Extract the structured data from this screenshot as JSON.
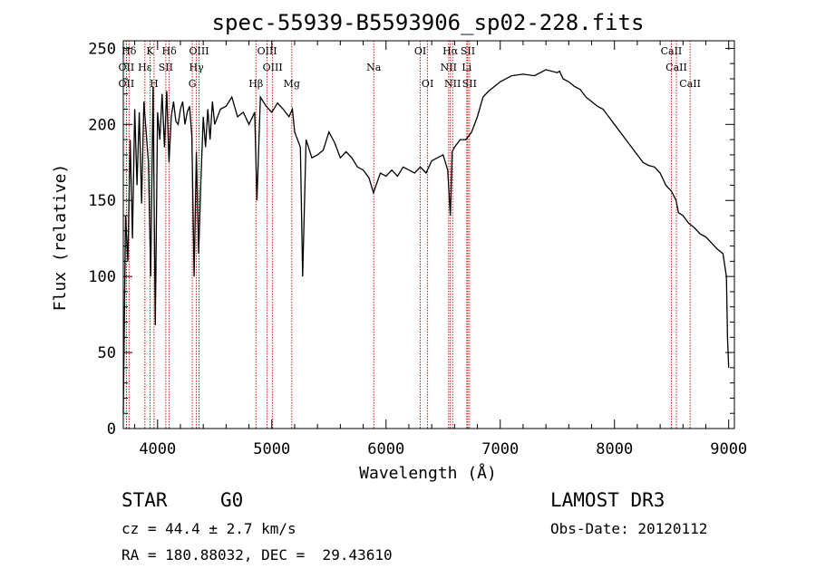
{
  "chart_data": {
    "type": "line",
    "title": "spec-55939-B5593906_sp02-228.fits",
    "xlabel": "Wavelength (Å)",
    "ylabel": "Flux (relative)",
    "xlim": [
      3700,
      9050
    ],
    "ylim": [
      0,
      255
    ],
    "xticks": [
      4000,
      5000,
      6000,
      7000,
      8000,
      9000
    ],
    "yticks": [
      0,
      50,
      100,
      150,
      200,
      250
    ],
    "series": [
      {
        "name": "flux",
        "x": [
          3700,
          3720,
          3740,
          3760,
          3780,
          3800,
          3820,
          3840,
          3860,
          3880,
          3900,
          3920,
          3940,
          3960,
          3980,
          4000,
          4020,
          4040,
          4060,
          4080,
          4100,
          4120,
          4140,
          4160,
          4180,
          4200,
          4220,
          4240,
          4260,
          4280,
          4300,
          4320,
          4340,
          4360,
          4380,
          4400,
          4420,
          4440,
          4460,
          4480,
          4500,
          4550,
          4600,
          4650,
          4700,
          4750,
          4800,
          4850,
          4870,
          4900,
          4950,
          5000,
          5050,
          5100,
          5150,
          5180,
          5200,
          5250,
          5270,
          5300,
          5350,
          5400,
          5450,
          5500,
          5550,
          5600,
          5650,
          5700,
          5750,
          5800,
          5850,
          5890,
          5950,
          6000,
          6050,
          6100,
          6150,
          6200,
          6250,
          6300,
          6350,
          6400,
          6450,
          6500,
          6540,
          6563,
          6580,
          6600,
          6650,
          6700,
          6750,
          6800,
          6850,
          6900,
          6950,
          7000,
          7100,
          7200,
          7300,
          7400,
          7500,
          7520,
          7550,
          7600,
          7650,
          7700,
          7750,
          7800,
          7850,
          7900,
          7950,
          8000,
          8050,
          8100,
          8150,
          8200,
          8250,
          8300,
          8350,
          8400,
          8450,
          8500,
          8540,
          8560,
          8600,
          8650,
          8700,
          8750,
          8800,
          8850,
          8900,
          8950,
          8980,
          8990,
          9000
        ],
        "values": [
          10,
          140,
          110,
          190,
          125,
          210,
          160,
          208,
          148,
          215,
          195,
          175,
          100,
          225,
          68,
          208,
          190,
          220,
          185,
          222,
          175,
          205,
          215,
          202,
          200,
          210,
          215,
          200,
          208,
          212,
          192,
          100,
          182,
          115,
          165,
          205,
          185,
          210,
          190,
          215,
          200,
          210,
          212,
          218,
          205,
          208,
          200,
          208,
          150,
          218,
          212,
          208,
          214,
          210,
          205,
          210,
          195,
          185,
          100,
          190,
          178,
          180,
          183,
          195,
          188,
          178,
          182,
          178,
          172,
          170,
          165,
          155,
          168,
          166,
          170,
          166,
          172,
          170,
          168,
          172,
          168,
          176,
          178,
          180,
          170,
          140,
          182,
          185,
          190,
          190,
          195,
          205,
          218,
          222,
          225,
          228,
          232,
          233,
          232,
          236,
          234,
          235,
          230,
          228,
          225,
          223,
          218,
          215,
          212,
          210,
          205,
          200,
          195,
          190,
          185,
          180,
          175,
          173,
          172,
          168,
          160,
          156,
          150,
          142,
          140,
          135,
          132,
          128,
          126,
          122,
          118,
          115,
          100,
          60,
          40
        ]
      }
    ],
    "lines": [
      {
        "name": "Hδ",
        "wl": 3750,
        "row": 1
      },
      {
        "name": "OII",
        "wl": 3727,
        "row": 2
      },
      {
        "name": "OII",
        "wl": 3727,
        "row": 3
      },
      {
        "name": "Hε",
        "wl": 3889,
        "row": 2
      },
      {
        "name": "K",
        "wl": 3934,
        "row": 1
      },
      {
        "name": "H",
        "wl": 3969,
        "row": 3
      },
      {
        "name": "Hδ",
        "wl": 4102,
        "row": 1
      },
      {
        "name": "SII",
        "wl": 4072,
        "row": 2
      },
      {
        "name": "OIII",
        "wl": 4363,
        "row": 1
      },
      {
        "name": "Hγ",
        "wl": 4340,
        "row": 2
      },
      {
        "name": "G",
        "wl": 4304,
        "row": 3
      },
      {
        "name": "OIII",
        "wl": 4959,
        "row": 1
      },
      {
        "name": "OIII",
        "wl": 5007,
        "row": 2
      },
      {
        "name": "Hβ",
        "wl": 4861,
        "row": 3
      },
      {
        "name": "Mg",
        "wl": 5175,
        "row": 3
      },
      {
        "name": "Na",
        "wl": 5893,
        "row": 2
      },
      {
        "name": "OI",
        "wl": 6300,
        "row": 1
      },
      {
        "name": "OI",
        "wl": 6364,
        "row": 3
      },
      {
        "name": "Hα",
        "wl": 6563,
        "row": 1
      },
      {
        "name": "SII",
        "wl": 6716,
        "row": 1
      },
      {
        "name": "NII",
        "wl": 6548,
        "row": 2
      },
      {
        "name": "Li",
        "wl": 6707,
        "row": 2
      },
      {
        "name": "NII",
        "wl": 6583,
        "row": 3
      },
      {
        "name": "SII",
        "wl": 6731,
        "row": 3
      },
      {
        "name": "CaII",
        "wl": 8498,
        "row": 1
      },
      {
        "name": "CaII",
        "wl": 8542,
        "row": 2
      },
      {
        "name": "CaII",
        "wl": 8662,
        "row": 3
      }
    ]
  },
  "info": {
    "object_class": "STAR",
    "subclass": "G0",
    "cz": "cz = 44.4 ± 2.7 km/s",
    "coords": "RA = 180.88032, DEC =  29.43610",
    "survey": "LAMOST DR3",
    "obs_date": "Obs-Date: 20120112"
  }
}
